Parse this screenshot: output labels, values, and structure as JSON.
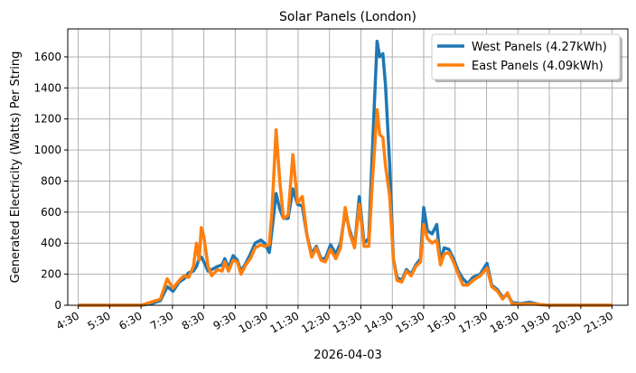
{
  "chart_data": {
    "type": "line",
    "title": "Solar Panels (London)",
    "xlabel": "2026-04-03",
    "ylabel": "Generated Electricity (Watts) Per String",
    "xlim": [
      "04:10",
      "22:00"
    ],
    "ylim": [
      0,
      1780
    ],
    "grid": true,
    "legend_placement": "top-right",
    "x_ticks": [
      "4:30",
      "5:30",
      "6:30",
      "7:30",
      "8:30",
      "9:30",
      "10:30",
      "11:30",
      "12:30",
      "13:30",
      "14:30",
      "15:30",
      "16:30",
      "17:30",
      "18:30",
      "19:30",
      "20:30",
      "21:30"
    ],
    "y_ticks": [
      0,
      200,
      400,
      600,
      800,
      1000,
      1200,
      1400,
      1600
    ],
    "x": [
      "04:30",
      "06:30",
      "06:49",
      "07:07",
      "07:20",
      "07:31",
      "07:43",
      "07:52",
      "08:01",
      "08:10",
      "08:16",
      "08:21",
      "08:25",
      "08:30",
      "08:38",
      "08:45",
      "08:56",
      "09:05",
      "09:10",
      "09:17",
      "09:26",
      "09:34",
      "09:41",
      "09:50",
      "09:59",
      "10:08",
      "10:19",
      "10:26",
      "10:35",
      "10:40",
      "10:48",
      "10:55",
      "11:02",
      "11:11",
      "11:20",
      "11:29",
      "11:38",
      "11:47",
      "11:56",
      "12:05",
      "12:14",
      "12:22",
      "12:32",
      "12:42",
      "12:51",
      "13:00",
      "13:09",
      "13:18",
      "13:27",
      "13:36",
      "13:45",
      "13:52",
      "14:01",
      "14:06",
      "14:12",
      "14:17",
      "14:25",
      "14:32",
      "14:39",
      "14:48",
      "14:57",
      "15:06",
      "15:15",
      "15:24",
      "15:30",
      "15:37",
      "15:46",
      "15:55",
      "16:02",
      "16:09",
      "16:18",
      "16:27",
      "16:36",
      "16:45",
      "16:54",
      "17:04",
      "17:18",
      "17:31",
      "17:40",
      "17:51",
      "18:01",
      "18:10",
      "18:19",
      "18:34",
      "18:52",
      "19:10",
      "19:28",
      "21:30"
    ],
    "series": [
      {
        "name": "West Panels (4.27kWh)",
        "color": "#1f77b4",
        "values": [
          0,
          0,
          10,
          30,
          120,
          90,
          150,
          170,
          210,
          220,
          250,
          300,
          310,
          280,
          220,
          230,
          250,
          260,
          300,
          240,
          320,
          290,
          220,
          270,
          330,
          400,
          420,
          400,
          340,
          480,
          720,
          620,
          560,
          560,
          750,
          650,
          640,
          450,
          330,
          380,
          300,
          300,
          390,
          330,
          400,
          600,
          480,
          380,
          700,
          400,
          430,
          1000,
          1700,
          1600,
          1620,
          1420,
          900,
          300,
          180,
          160,
          230,
          200,
          260,
          300,
          630,
          480,
          460,
          520,
          280,
          370,
          360,
          300,
          220,
          170,
          140,
          180,
          200,
          270,
          130,
          100,
          50,
          70,
          20,
          10,
          20,
          5,
          0,
          0
        ]
      },
      {
        "name": "East Panels (4.09kWh)",
        "color": "#ff7f0e",
        "values": [
          0,
          0,
          20,
          40,
          170,
          110,
          160,
          190,
          180,
          250,
          400,
          290,
          500,
          440,
          250,
          190,
          230,
          220,
          280,
          220,
          290,
          280,
          200,
          260,
          300,
          370,
          390,
          380,
          390,
          600,
          1130,
          800,
          560,
          580,
          970,
          660,
          700,
          450,
          310,
          370,
          290,
          280,
          360,
          300,
          370,
          630,
          460,
          370,
          650,
          380,
          380,
          800,
          1260,
          1100,
          1080,
          900,
          700,
          300,
          160,
          150,
          220,
          190,
          250,
          280,
          520,
          430,
          400,
          420,
          260,
          330,
          340,
          280,
          200,
          130,
          130,
          160,
          190,
          240,
          120,
          90,
          40,
          80,
          10,
          5,
          10,
          5,
          0,
          0
        ]
      }
    ]
  }
}
